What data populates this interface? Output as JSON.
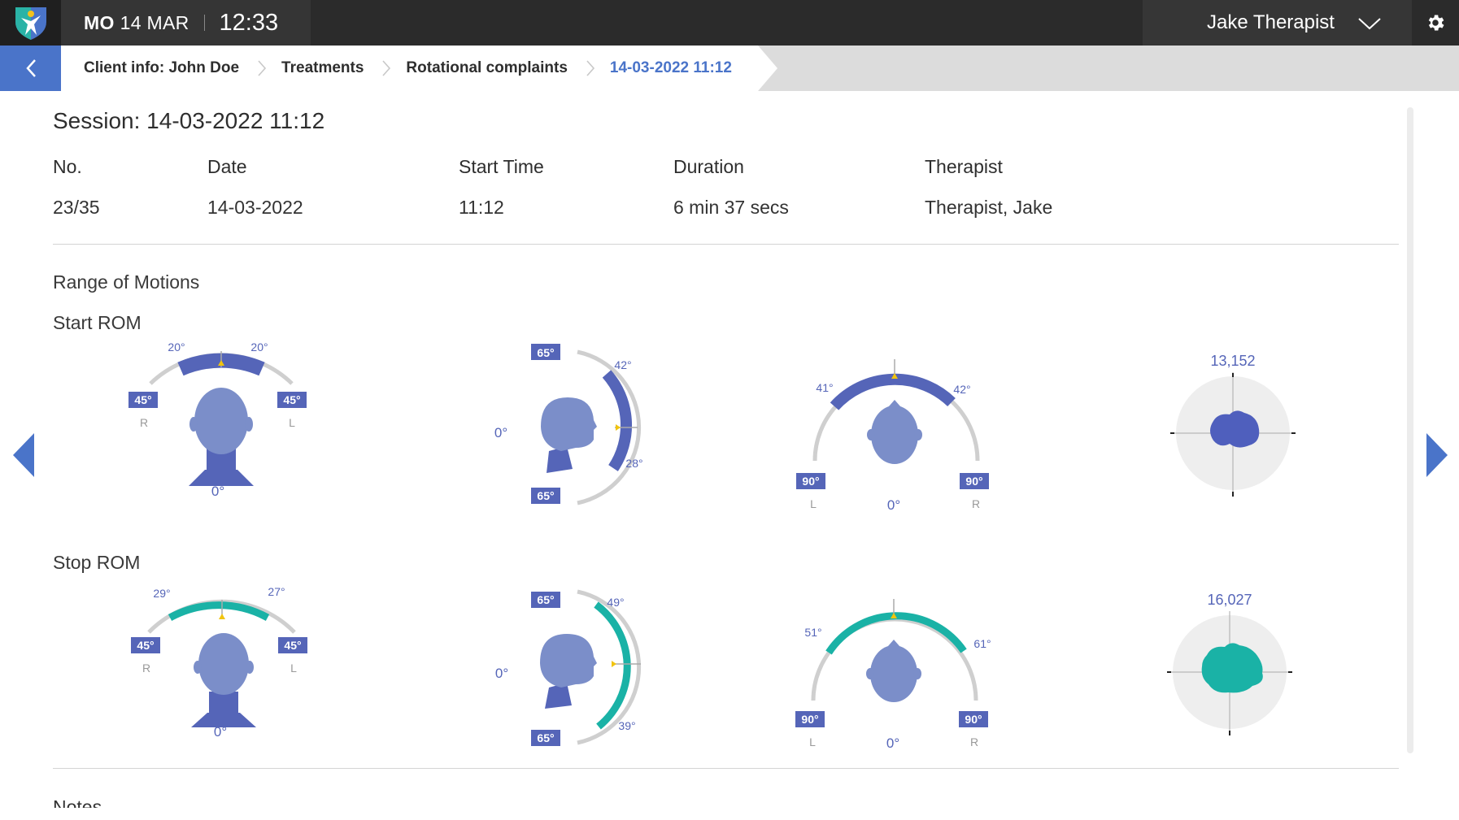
{
  "app": {
    "logo": "app-logo-icon"
  },
  "header": {
    "day": "MO",
    "date": "14 MAR",
    "time": "12:33",
    "user": "Jake Therapist"
  },
  "breadcrumb": [
    "Client info: John Doe",
    "Treatments",
    "Rotational complaints",
    "14-03-2022 11:12"
  ],
  "session": {
    "title": "Session: 14-03-2022 11:12",
    "columns": [
      "No.",
      "Date",
      "Start Time",
      "Duration",
      "Therapist"
    ],
    "values": [
      "23/35",
      "14-03-2022",
      "11:12",
      "6 min 37 secs",
      "Therapist, Jake"
    ]
  },
  "rom": {
    "section_title": "Range of Motions",
    "start_label": "Start ROM",
    "stop_label": "Stop ROM",
    "start": {
      "color": "#5565b8",
      "lateral": {
        "left_value": "20°",
        "right_value": "20°",
        "left_max": "45°",
        "right_max": "45°",
        "left_side": "R",
        "right_side": "L",
        "zero": "0°"
      },
      "flexion": {
        "top_max": "65°",
        "bottom_max": "65°",
        "top_value": "42°",
        "bottom_value": "28°",
        "zero": "0°"
      },
      "rotation": {
        "left_value": "41°",
        "right_value": "42°",
        "left_max": "90°",
        "right_max": "90°",
        "left_side": "L",
        "right_side": "R",
        "zero": "0°"
      },
      "area": {
        "value": "13,152"
      }
    },
    "stop": {
      "color": "#1ab2a6",
      "lateral": {
        "left_value": "29°",
        "right_value": "27°",
        "left_max": "45°",
        "right_max": "45°",
        "left_side": "R",
        "right_side": "L",
        "zero": "0°"
      },
      "flexion": {
        "top_max": "65°",
        "bottom_max": "65°",
        "top_value": "49°",
        "bottom_value": "39°",
        "zero": "0°"
      },
      "rotation": {
        "left_value": "51°",
        "right_value": "61°",
        "left_max": "90°",
        "right_max": "90°",
        "left_side": "L",
        "right_side": "R",
        "zero": "0°"
      },
      "area": {
        "value": "16,027"
      }
    }
  },
  "notes": {
    "label": "Notes"
  },
  "colors": {
    "accent": "#4a74c9",
    "head": "#7b8ec9",
    "badge": "#5565b8",
    "teal": "#1ab2a6",
    "marker": "#f1c40f"
  }
}
